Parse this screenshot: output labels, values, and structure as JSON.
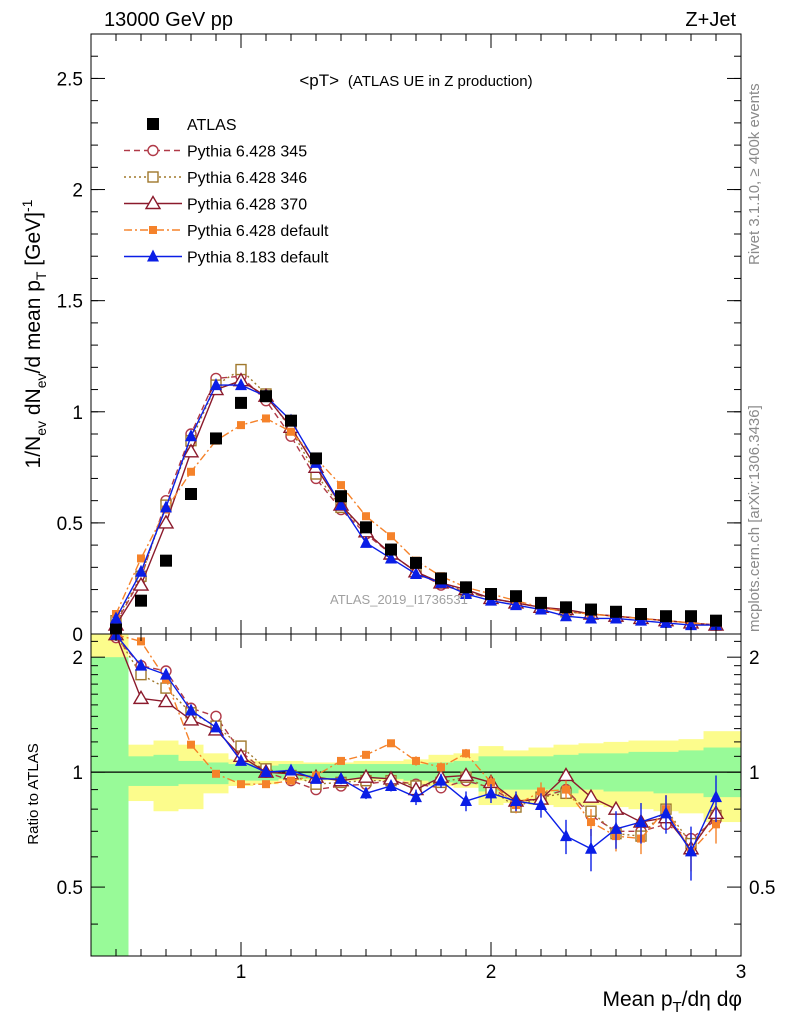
{
  "header": {
    "energy_label": "13000 GeV pp",
    "process_label": "Z+Jet"
  },
  "side_labels": {
    "rivet": "Rivet 3.1.10, ≥ 400k events",
    "mcplots": "mcplots.cern.ch [arXiv:1306.3436]"
  },
  "watermark": "ATLAS_2019_I1736531",
  "chart_data": {
    "type": "line",
    "title": "<pT> (ATLAS UE in Z production)",
    "title_main": "<pT>",
    "title_sub": "(ATLAS UE in Z production)",
    "xlabel": "Mean p_T/dη dφ",
    "xlabel_parts": [
      "Mean p",
      "T",
      "/dη dφ"
    ],
    "ylabel": "1/N_ev dN_ev/d mean p_T [GeV]^-1",
    "ylabel_parts": [
      "1/N",
      "ev",
      " dN",
      "ev",
      "/d mean p",
      "T",
      " [GeV]",
      "-1"
    ],
    "ratio_ylabel": "Ratio to ATLAS",
    "xlim": [
      0.4,
      3.0
    ],
    "ylim": [
      0,
      2.7
    ],
    "ratio_ylim": [
      0.33,
      2.3
    ],
    "x_ticks": [
      "1",
      "2",
      "3"
    ],
    "y_ticks": [
      "0",
      "0.5",
      "1",
      "1.5",
      "2",
      "2.5"
    ],
    "ratio_y_ticks": [
      "0.5",
      "1",
      "2"
    ],
    "x": [
      0.5,
      0.6,
      0.7,
      0.8,
      0.9,
      1.0,
      1.1,
      1.2,
      1.3,
      1.4,
      1.5,
      1.6,
      1.7,
      1.8,
      1.9,
      2.0,
      2.1,
      2.2,
      2.3,
      2.4,
      2.5,
      2.6,
      2.7,
      2.8,
      2.9
    ],
    "band_edges": [
      0.4,
      0.55,
      0.65,
      0.75,
      0.85,
      0.95,
      1.05,
      1.15,
      1.25,
      1.35,
      1.45,
      1.55,
      1.65,
      1.75,
      1.85,
      1.95,
      2.05,
      2.15,
      2.25,
      2.35,
      2.45,
      2.55,
      2.65,
      2.75,
      2.85,
      3.0
    ],
    "band_stat_low": [
      0.3,
      0.92,
      0.92,
      0.93,
      0.93,
      0.95,
      0.95,
      0.96,
      0.96,
      0.96,
      0.96,
      0.96,
      0.95,
      0.94,
      0.93,
      0.89,
      0.9,
      0.9,
      0.88,
      0.9,
      0.89,
      0.89,
      0.88,
      0.88,
      0.86
    ],
    "band_stat_high": [
      2.0,
      1.1,
      1.11,
      1.07,
      1.06,
      1.05,
      1.04,
      1.05,
      1.05,
      1.05,
      1.05,
      1.05,
      1.05,
      1.06,
      1.07,
      1.1,
      1.1,
      1.1,
      1.11,
      1.12,
      1.12,
      1.13,
      1.13,
      1.14,
      1.16
    ],
    "band_tot_low": [
      0.3,
      0.84,
      0.79,
      0.8,
      0.88,
      0.92,
      0.93,
      0.95,
      0.95,
      0.95,
      0.95,
      0.95,
      0.93,
      0.92,
      0.91,
      0.82,
      0.83,
      0.82,
      0.81,
      0.82,
      0.81,
      0.8,
      0.79,
      0.78,
      0.74
    ],
    "band_tot_high": [
      2.5,
      1.18,
      1.21,
      1.18,
      1.12,
      1.08,
      1.07,
      1.07,
      1.06,
      1.06,
      1.07,
      1.07,
      1.08,
      1.11,
      1.12,
      1.17,
      1.14,
      1.16,
      1.18,
      1.19,
      1.2,
      1.21,
      1.21,
      1.22,
      1.28
    ],
    "series": [
      {
        "name": "ATLAS",
        "color": "#000000",
        "marker": "square-filled",
        "values": [
          0.02,
          0.15,
          0.33,
          0.63,
          0.88,
          1.04,
          1.07,
          0.96,
          0.79,
          0.62,
          0.48,
          0.38,
          0.32,
          0.25,
          0.21,
          0.18,
          0.17,
          0.14,
          0.12,
          0.11,
          0.1,
          0.09,
          0.08,
          0.08,
          0.06
        ],
        "ratio": [
          1.0,
          1.0,
          1.0,
          1.0,
          1.0,
          1.0,
          1.0,
          1.0,
          1.0,
          1.0,
          1.0,
          1.0,
          1.0,
          1.0,
          1.0,
          1.0,
          1.0,
          1.0,
          1.0,
          1.0,
          1.0,
          1.0,
          1.0,
          1.0,
          1.0
        ],
        "ratio_err": []
      },
      {
        "name": "Pythia 6.428 345",
        "color": "#b03a48",
        "marker": "circle-open",
        "dash": "6,4",
        "values": [
          0.05,
          0.25,
          0.6,
          0.9,
          1.15,
          1.16,
          1.05,
          0.89,
          0.7,
          0.56,
          0.45,
          0.36,
          0.28,
          0.22,
          0.19,
          0.16,
          0.14,
          0.12,
          0.1,
          0.09,
          0.08,
          0.07,
          0.06,
          0.05,
          0.04
        ],
        "ratio": [
          2.25,
          1.9,
          1.84,
          1.47,
          1.4,
          1.13,
          1.0,
          0.95,
          0.9,
          0.92,
          0.93,
          0.95,
          0.93,
          0.91,
          0.95,
          0.91,
          0.83,
          0.86,
          0.9,
          0.77,
          0.7,
          0.7,
          0.73,
          0.67,
          0.75
        ],
        "ratio_err": []
      },
      {
        "name": "Pythia 6.428 346",
        "color": "#a0782c",
        "marker": "square-open",
        "dash": "2,3",
        "values": [
          0.06,
          0.26,
          0.58,
          0.87,
          1.12,
          1.19,
          1.08,
          0.92,
          0.72,
          0.57,
          0.46,
          0.36,
          0.28,
          0.23,
          0.19,
          0.16,
          0.14,
          0.12,
          0.1,
          0.09,
          0.08,
          0.07,
          0.06,
          0.05,
          0.04
        ],
        "ratio": [
          2.3,
          1.8,
          1.66,
          1.43,
          1.32,
          1.17,
          1.02,
          0.98,
          0.93,
          0.94,
          0.95,
          0.95,
          0.92,
          0.94,
          0.97,
          0.9,
          0.81,
          0.86,
          0.88,
          0.79,
          0.69,
          0.68,
          0.8,
          0.65,
          0.77
        ],
        "ratio_err": []
      },
      {
        "name": "Pythia 6.428 370",
        "color": "#8b1a2c",
        "marker": "triangle-open",
        "dash": "",
        "values": [
          0.04,
          0.22,
          0.5,
          0.82,
          1.1,
          1.14,
          1.07,
          0.93,
          0.75,
          0.58,
          0.46,
          0.36,
          0.28,
          0.23,
          0.2,
          0.16,
          0.14,
          0.12,
          0.11,
          0.09,
          0.08,
          0.07,
          0.06,
          0.05,
          0.04
        ],
        "ratio": [
          2.3,
          1.56,
          1.53,
          1.37,
          1.29,
          1.1,
          1.0,
          0.99,
          0.97,
          0.95,
          0.97,
          0.96,
          0.9,
          0.97,
          0.98,
          0.94,
          0.84,
          0.85,
          0.98,
          0.86,
          0.8,
          0.74,
          0.76,
          0.63,
          0.78
        ],
        "ratio_err": []
      },
      {
        "name": "Pythia 6.428 default",
        "color": "#f5822a",
        "marker": "square-filled",
        "dash": "8,3,2,3",
        "values": [
          0.09,
          0.34,
          0.56,
          0.73,
          0.87,
          0.94,
          0.97,
          0.91,
          0.79,
          0.67,
          0.53,
          0.44,
          0.33,
          0.26,
          0.21,
          0.18,
          0.15,
          0.12,
          0.1,
          0.09,
          0.08,
          0.07,
          0.06,
          0.05,
          0.04
        ],
        "ratio": [
          2.6,
          2.2,
          1.75,
          1.18,
          0.99,
          0.93,
          0.93,
          0.95,
          0.98,
          1.07,
          1.11,
          1.19,
          1.07,
          1.03,
          1.12,
          0.94,
          0.82,
          0.89,
          0.9,
          0.74,
          0.68,
          0.67,
          0.8,
          0.62,
          0.73
        ],
        "ratio_err": [
          0.03,
          0.03,
          0.03,
          0.02,
          0.02,
          0.02,
          0.02,
          0.02,
          0.02,
          0.02,
          0.02,
          0.02,
          0.03,
          0.03,
          0.03,
          0.04,
          0.04,
          0.05,
          0.05,
          0.06,
          0.06,
          0.06,
          0.07,
          0.07,
          0.08
        ]
      },
      {
        "name": "Pythia 8.183 default",
        "color": "#0a1ee6",
        "marker": "triangle-filled",
        "dash": "",
        "values": [
          0.07,
          0.28,
          0.57,
          0.89,
          1.12,
          1.12,
          1.07,
          0.96,
          0.77,
          0.58,
          0.41,
          0.34,
          0.27,
          0.23,
          0.18,
          0.15,
          0.13,
          0.11,
          0.08,
          0.07,
          0.07,
          0.06,
          0.05,
          0.04,
          0.04
        ],
        "ratio": [
          2.55,
          1.9,
          1.8,
          1.45,
          1.31,
          1.07,
          1.0,
          1.01,
          0.96,
          0.96,
          0.88,
          0.92,
          0.86,
          0.95,
          0.84,
          0.88,
          0.84,
          0.82,
          0.68,
          0.63,
          0.71,
          0.74,
          0.78,
          0.62,
          0.86
        ],
        "ratio_err": [
          0.04,
          0.04,
          0.04,
          0.03,
          0.03,
          0.02,
          0.02,
          0.02,
          0.02,
          0.03,
          0.03,
          0.03,
          0.04,
          0.04,
          0.05,
          0.05,
          0.05,
          0.06,
          0.07,
          0.08,
          0.08,
          0.09,
          0.09,
          0.1,
          0.12
        ]
      }
    ]
  }
}
